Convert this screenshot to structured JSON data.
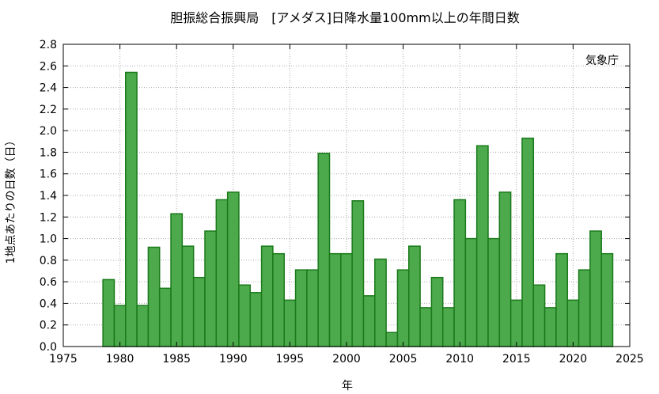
{
  "chart_data": {
    "type": "bar",
    "title": "胆振総合振興局　[アメダス]日降水量100mm以上の年間日数",
    "xlabel": "年",
    "ylabel": "1地点あたりの日数（日）",
    "annotation": "気象庁",
    "xlim": [
      1975,
      2025
    ],
    "ylim": [
      0,
      2.8
    ],
    "x_ticks": [
      "1975",
      "1980",
      "1985",
      "1990",
      "1995",
      "2000",
      "2005",
      "2010",
      "2015",
      "2020",
      "2025"
    ],
    "y_ticks": [
      "0.0",
      "0.2",
      "0.4",
      "0.6",
      "0.8",
      "1.0",
      "1.2",
      "1.4",
      "1.6",
      "1.8",
      "2.0",
      "2.2",
      "2.4",
      "2.6",
      "2.8"
    ],
    "grid": true,
    "bar_color": "#4caa4c",
    "bar_edge_color": "#1a7a1a",
    "x": [
      1979,
      1980,
      1981,
      1982,
      1983,
      1984,
      1985,
      1986,
      1987,
      1988,
      1989,
      1990,
      1991,
      1992,
      1993,
      1994,
      1995,
      1996,
      1997,
      1998,
      1999,
      2000,
      2001,
      2002,
      2003,
      2004,
      2005,
      2006,
      2007,
      2008,
      2009,
      2010,
      2011,
      2012,
      2013,
      2014,
      2015,
      2016,
      2017,
      2018,
      2019,
      2020,
      2021,
      2022,
      2023
    ],
    "values": [
      0.62,
      0.38,
      2.54,
      0.38,
      0.92,
      0.54,
      1.23,
      0.93,
      0.64,
      1.07,
      1.36,
      1.43,
      0.57,
      0.5,
      0.93,
      0.86,
      0.43,
      0.71,
      0.71,
      1.79,
      0.86,
      0.86,
      1.35,
      0.47,
      0.81,
      0.13,
      0.71,
      0.93,
      0.36,
      0.64,
      0.36,
      1.36,
      1.0,
      1.86,
      1.0,
      1.43,
      0.43,
      1.93,
      0.57,
      0.36,
      0.86,
      0.43,
      0.71,
      1.07,
      0.86
    ]
  }
}
